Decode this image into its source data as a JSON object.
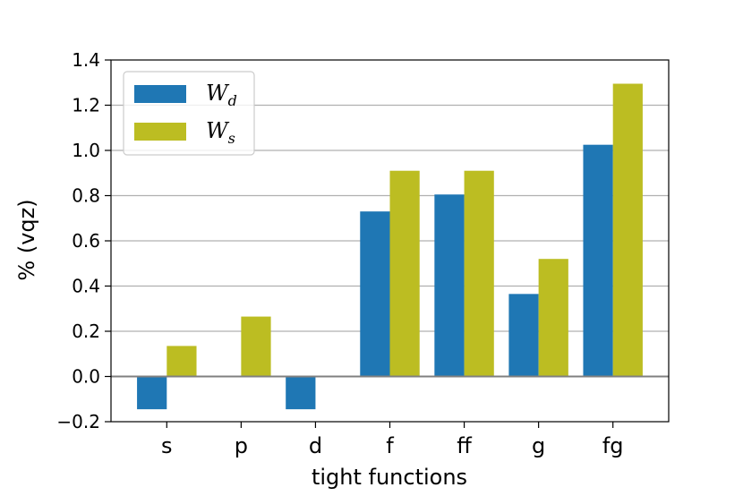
{
  "chart_data": {
    "type": "bar",
    "xlabel": "tight functions",
    "ylabel": "% (vqz)",
    "categories": [
      "s",
      "p",
      "d",
      "f",
      "ff",
      "g",
      "fg"
    ],
    "series": [
      {
        "name": "W",
        "subscript": "d",
        "color": "#1f77b4",
        "values": [
          -0.145,
          0.0,
          -0.145,
          0.73,
          0.805,
          0.365,
          1.025
        ]
      },
      {
        "name": "W",
        "subscript": "s",
        "color": "#bcbd22",
        "values": [
          0.135,
          0.265,
          0.0,
          0.91,
          0.91,
          0.52,
          1.295
        ]
      }
    ],
    "ylim": [
      -0.2,
      1.4
    ],
    "yticks": [
      -0.2,
      0.0,
      0.2,
      0.4,
      0.6,
      0.8,
      1.0,
      1.2,
      1.4
    ],
    "ytick_labels": [
      "−0.2",
      "0.0",
      "0.2",
      "0.4",
      "0.6",
      "0.8",
      "1.0",
      "1.2",
      "1.4"
    ],
    "grid": "horizontal",
    "legend_position": "top-left"
  }
}
